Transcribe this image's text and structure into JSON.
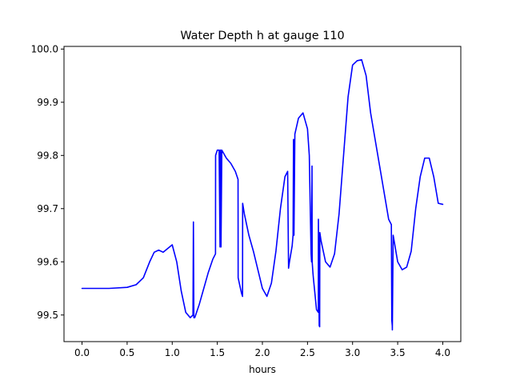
{
  "chart_data": {
    "type": "line",
    "title": "Water Depth h at gauge 110",
    "xlabel": "hours",
    "ylabel": "",
    "xlim": [
      -0.2,
      4.2
    ],
    "ylim": [
      99.45,
      100.005
    ],
    "xticks": [
      0.0,
      0.5,
      1.0,
      1.5,
      2.0,
      2.5,
      3.0,
      3.5,
      4.0
    ],
    "xtick_labels": [
      "0.0",
      "0.5",
      "1.0",
      "1.5",
      "2.0",
      "2.5",
      "3.0",
      "3.5",
      "4.0"
    ],
    "yticks": [
      99.5,
      99.6,
      99.7,
      99.8,
      99.9,
      100.0
    ],
    "ytick_labels": [
      "99.5",
      "99.6",
      "99.7",
      "99.8",
      "99.9",
      "100.0"
    ],
    "grid": false,
    "legend": "none",
    "series": [
      {
        "color": "#0000ff",
        "x": [
          0.0,
          0.3,
          0.5,
          0.6,
          0.68,
          0.75,
          0.8,
          0.85,
          0.9,
          0.95,
          1.0,
          1.05,
          1.1,
          1.15,
          1.2,
          1.23,
          1.235,
          1.24,
          1.25,
          1.3,
          1.35,
          1.4,
          1.45,
          1.48,
          1.481,
          1.5,
          1.52,
          1.53,
          1.531,
          1.54,
          1.541,
          1.55,
          1.6,
          1.65,
          1.7,
          1.73,
          1.731,
          1.75,
          1.77,
          1.78,
          1.781,
          1.8,
          1.85,
          1.9,
          1.95,
          2.0,
          2.05,
          2.1,
          2.15,
          2.2,
          2.25,
          2.28,
          2.29,
          2.3,
          2.33,
          2.34,
          2.345,
          2.35,
          2.36,
          2.4,
          2.45,
          2.5,
          2.52,
          2.54,
          2.545,
          2.55,
          2.552,
          2.56,
          2.565,
          2.6,
          2.62,
          2.621,
          2.63,
          2.635,
          2.637,
          2.65,
          2.7,
          2.75,
          2.8,
          2.85,
          2.9,
          2.95,
          3.0,
          3.05,
          3.1,
          3.15,
          3.2,
          3.3,
          3.4,
          3.43,
          3.435,
          3.44,
          3.441,
          3.45,
          3.46,
          3.5,
          3.55,
          3.6,
          3.65,
          3.7,
          3.75,
          3.8,
          3.85,
          3.9,
          3.95,
          4.0
        ],
        "y": [
          99.55,
          99.55,
          99.552,
          99.557,
          99.57,
          99.6,
          99.618,
          99.622,
          99.618,
          99.625,
          99.632,
          99.6,
          99.545,
          99.505,
          99.495,
          99.5,
          99.675,
          99.495,
          99.495,
          99.52,
          99.55,
          99.58,
          99.605,
          99.615,
          99.8,
          99.81,
          99.81,
          99.628,
          99.81,
          99.81,
          99.628,
          99.81,
          99.795,
          99.785,
          99.77,
          99.755,
          99.57,
          99.555,
          99.54,
          99.535,
          99.71,
          99.69,
          99.65,
          99.62,
          99.585,
          99.55,
          99.535,
          99.56,
          99.62,
          99.7,
          99.76,
          99.77,
          99.588,
          99.6,
          99.63,
          99.65,
          99.83,
          99.65,
          99.84,
          99.87,
          99.88,
          99.85,
          99.8,
          99.615,
          99.6,
          99.78,
          99.6,
          99.58,
          99.57,
          99.51,
          99.505,
          99.68,
          99.48,
          99.478,
          99.655,
          99.64,
          99.6,
          99.59,
          99.615,
          99.69,
          99.8,
          99.91,
          99.97,
          99.978,
          99.98,
          99.95,
          99.88,
          99.78,
          99.68,
          99.67,
          99.49,
          99.48,
          99.472,
          99.65,
          99.64,
          99.6,
          99.585,
          99.59,
          99.62,
          99.7,
          99.76,
          99.795,
          99.795,
          99.76,
          99.71,
          99.708
        ]
      }
    ]
  }
}
